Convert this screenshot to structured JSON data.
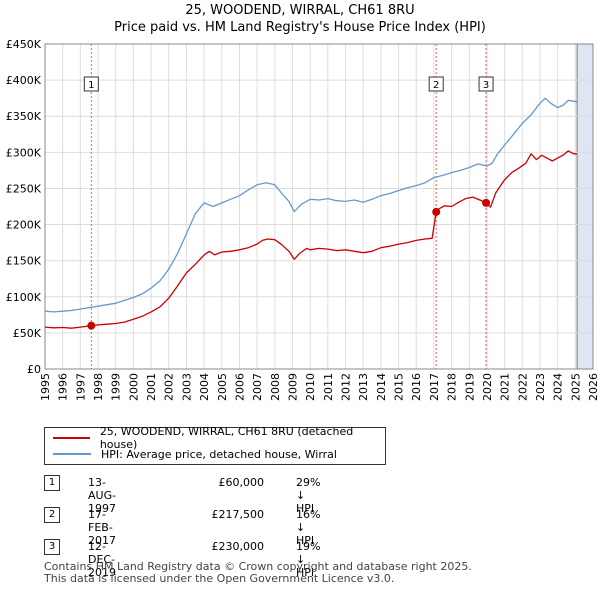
{
  "header": {
    "title": "25, WOODEND, WIRRAL, CH61 8RU",
    "subtitle": "Price paid vs. HM Land Registry's House Price Index (HPI)"
  },
  "colors": {
    "price_paid": "#cc0000",
    "hpi": "#6699cc",
    "marker_line": "#e06060",
    "shade": "#dde6f2"
  },
  "chart_data": {
    "type": "line",
    "title": "Price paid vs. HM Land Registry's House Price Index (HPI)",
    "xlim": [
      1995,
      2026
    ],
    "ylim": [
      0,
      450000
    ],
    "x_ticks": [
      1995,
      1996,
      1997,
      1998,
      1999,
      2000,
      2001,
      2002,
      2003,
      2004,
      2005,
      2006,
      2007,
      2008,
      2009,
      2010,
      2011,
      2012,
      2013,
      2014,
      2015,
      2016,
      2017,
      2018,
      2019,
      2020,
      2021,
      2022,
      2023,
      2024,
      2025,
      2026
    ],
    "x_tick_labels": [
      "1995",
      "1996",
      "1997",
      "1998",
      "1999",
      "2000",
      "2001",
      "2002",
      "2003",
      "2004",
      "2005",
      "2006",
      "2007",
      "2008",
      "2009",
      "2010",
      "2011",
      "2012",
      "2013",
      "2014",
      "2015",
      "2016",
      "2017",
      "2018",
      "2019",
      "2020",
      "2021",
      "2022",
      "2023",
      "2024",
      "2025",
      "2026"
    ],
    "y_ticks": [
      0,
      50000,
      100000,
      150000,
      200000,
      250000,
      300000,
      350000,
      400000,
      450000
    ],
    "y_tick_labels": [
      "£0",
      "£50K",
      "£100K",
      "£150K",
      "£200K",
      "£250K",
      "£300K",
      "£350K",
      "£400K",
      "£450K"
    ],
    "future_shade_from": 2025.1,
    "series": [
      {
        "name": "25, WOODEND, WIRRAL, CH61 8RU (detached house)",
        "color": "#cc0000",
        "x": [
          1995,
          1995.5,
          1996,
          1996.5,
          1997,
          1997.62,
          1998,
          1998.5,
          1999,
          1999.5,
          2000,
          2000.5,
          2001,
          2001.5,
          2002,
          2002.5,
          2003,
          2003.5,
          2004,
          2004.3,
          2004.6,
          2005,
          2005.5,
          2006,
          2006.5,
          2007,
          2007.3,
          2007.6,
          2008,
          2008.4,
          2008.8,
          2009.1,
          2009.4,
          2009.8,
          2010,
          2010.5,
          2011,
          2011.5,
          2012,
          2012.5,
          2013,
          2013.5,
          2014,
          2014.5,
          2015,
          2015.5,
          2016,
          2016.5,
          2016.9,
          2017.13,
          2017.3,
          2017.6,
          2018,
          2018.4,
          2018.8,
          2019.2,
          2019.6,
          2019.95,
          2020.2,
          2020.5,
          2021,
          2021.4,
          2021.8,
          2022.2,
          2022.5,
          2022.8,
          2023.1,
          2023.4,
          2023.7,
          2024,
          2024.3,
          2024.6,
          2024.9,
          2025.1
        ],
        "y": [
          58000,
          57000,
          57500,
          56500,
          58000,
          60000,
          61000,
          62000,
          63000,
          65000,
          69000,
          73000,
          79000,
          86000,
          98000,
          115000,
          133000,
          145000,
          158000,
          163000,
          158000,
          162000,
          163000,
          165000,
          168000,
          173000,
          178000,
          180000,
          179000,
          172000,
          163000,
          152000,
          160000,
          167000,
          165000,
          167000,
          166000,
          164000,
          165000,
          163000,
          161000,
          163000,
          168000,
          170000,
          173000,
          175000,
          178000,
          180000,
          181000,
          217500,
          222000,
          226000,
          225000,
          231000,
          236000,
          238000,
          234000,
          230000,
          224000,
          244000,
          262000,
          272000,
          278000,
          285000,
          298000,
          290000,
          296000,
          292000,
          288000,
          292000,
          296000,
          302000,
          298000,
          298000
        ]
      },
      {
        "name": "HPI: Average price, detached house, Wirral",
        "color": "#6699cc",
        "x": [
          1995,
          1995.5,
          1996,
          1996.5,
          1997,
          1997.5,
          1998,
          1998.5,
          1999,
          1999.5,
          2000,
          2000.5,
          2001,
          2001.5,
          2002,
          2002.5,
          2003,
          2003.5,
          2004,
          2004.5,
          2005,
          2005.5,
          2006,
          2006.5,
          2007,
          2007.5,
          2008,
          2008.4,
          2008.8,
          2009.1,
          2009.5,
          2010,
          2010.5,
          2011,
          2011.5,
          2012,
          2012.5,
          2013,
          2013.5,
          2014,
          2014.5,
          2015,
          2015.5,
          2016,
          2016.5,
          2017,
          2017.5,
          2018,
          2018.5,
          2019,
          2019.5,
          2020,
          2020.3,
          2020.6,
          2021,
          2021.5,
          2022,
          2022.5,
          2023,
          2023.3,
          2023.6,
          2024,
          2024.3,
          2024.6,
          2025.1
        ],
        "y": [
          80000,
          79000,
          80000,
          81000,
          83000,
          85000,
          87000,
          89000,
          91000,
          95000,
          99000,
          104000,
          112000,
          122000,
          138000,
          160000,
          187000,
          215000,
          230000,
          225000,
          230000,
          235000,
          240000,
          248000,
          255000,
          258000,
          255000,
          243000,
          232000,
          218000,
          228000,
          235000,
          234000,
          236000,
          233000,
          232000,
          234000,
          231000,
          235000,
          240000,
          243000,
          247000,
          251000,
          254000,
          258000,
          265000,
          268000,
          272000,
          275000,
          279000,
          284000,
          281000,
          285000,
          298000,
          310000,
          325000,
          340000,
          352000,
          368000,
          375000,
          368000,
          362000,
          365000,
          372000,
          370000
        ]
      }
    ],
    "sales": [
      {
        "label": "1",
        "x": 1997.62,
        "y": 60000
      },
      {
        "label": "2",
        "x": 2017.13,
        "y": 217500
      },
      {
        "label": "3",
        "x": 2019.95,
        "y": 230000
      }
    ]
  },
  "legend": {
    "items": [
      {
        "label": "25, WOODEND, WIRRAL, CH61 8RU (detached house)"
      },
      {
        "label": "HPI: Average price, detached house, Wirral"
      }
    ]
  },
  "transactions": [
    {
      "num": "1",
      "date": "13-AUG-1997",
      "price": "£60,000",
      "hpi": "29% ↓ HPI"
    },
    {
      "num": "2",
      "date": "17-FEB-2017",
      "price": "£217,500",
      "hpi": "16% ↓ HPI"
    },
    {
      "num": "3",
      "date": "12-DEC-2019",
      "price": "£230,000",
      "hpi": "19% ↓ HPI"
    }
  ],
  "footer": {
    "line1": "Contains HM Land Registry data © Crown copyright and database right 2025.",
    "line2": "This data is licensed under the Open Government Licence v3.0."
  }
}
